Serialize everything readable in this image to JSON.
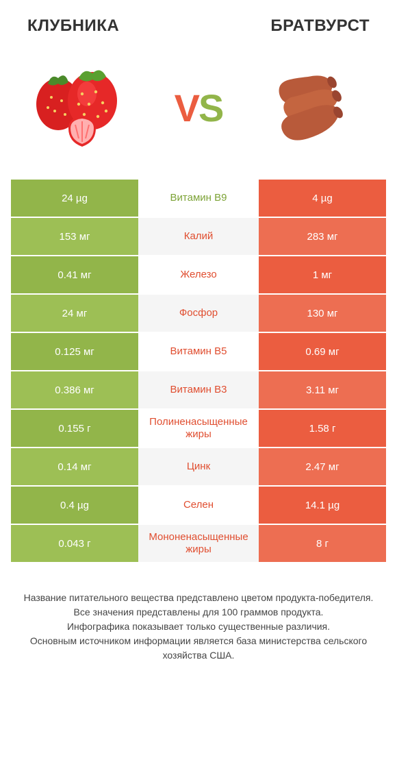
{
  "colors": {
    "green": "#92b54a",
    "green_alt": "#9dbf55",
    "orange": "#eb5d40",
    "orange_alt": "#ed6e52",
    "label_green": "#7da337",
    "label_orange": "#e04e30",
    "title": "#333333",
    "footer": "#444444",
    "row_alt_bg": "#f5f5f5"
  },
  "header": {
    "left_title": "КЛУБНИКА",
    "right_title": "БРАТВУРСТ",
    "vs_v": "V",
    "vs_s": "S"
  },
  "rows": [
    {
      "left": "24 µg",
      "label": "Витамин B9",
      "right": "4 µg",
      "winner": "left"
    },
    {
      "left": "153 мг",
      "label": "Калий",
      "right": "283 мг",
      "winner": "right"
    },
    {
      "left": "0.41 мг",
      "label": "Железо",
      "right": "1 мг",
      "winner": "right"
    },
    {
      "left": "24 мг",
      "label": "Фосфор",
      "right": "130 мг",
      "winner": "right"
    },
    {
      "left": "0.125 мг",
      "label": "Витамин B5",
      "right": "0.69 мг",
      "winner": "right"
    },
    {
      "left": "0.386 мг",
      "label": "Витамин B3",
      "right": "3.11 мг",
      "winner": "right"
    },
    {
      "left": "0.155 г",
      "label": "Полиненасыщенные жиры",
      "right": "1.58 г",
      "winner": "right"
    },
    {
      "left": "0.14 мг",
      "label": "Цинк",
      "right": "2.47 мг",
      "winner": "right"
    },
    {
      "left": "0.4 µg",
      "label": "Селен",
      "right": "14.1 µg",
      "winner": "right"
    },
    {
      "left": "0.043 г",
      "label": "Мононенасыщенные жиры",
      "right": "8 г",
      "winner": "right"
    }
  ],
  "footer": {
    "line1": "Название питательного вещества представлено цветом продукта-победителя.",
    "line2": "Все значения представлены для 100 граммов продукта.",
    "line3": "Инфографика показывает только существенные различия.",
    "line4": "Основным источником информации является база министерства сельского хозяйства США."
  }
}
